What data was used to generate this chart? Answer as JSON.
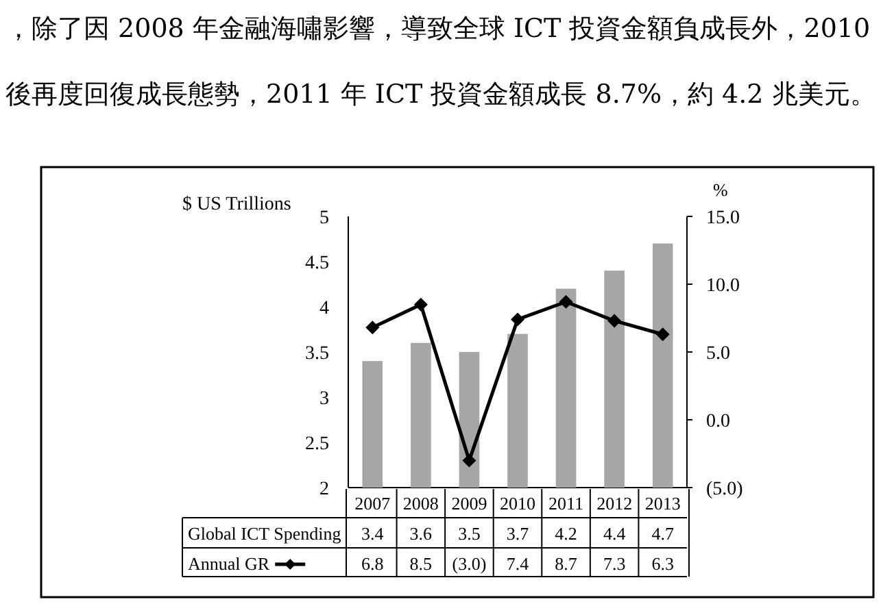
{
  "chart_data": {
    "type": "bar",
    "annotations": [
      "，除了因 2008 年金融海嘯影響，導致全球 ICT 投資金額負成長外，2010",
      "後再度回復成長態勢，2011 年 ICT 投資金額成長 8.7%，約 4.2 兆美元。"
    ],
    "ylabel": "$ US Trillions",
    "y2label": "%",
    "categories": [
      "2007",
      "2008",
      "2009",
      "2010",
      "2011",
      "2012",
      "2013"
    ],
    "series": [
      {
        "name": "Global ICT Spending",
        "type": "bar",
        "color": "#a6a6a6",
        "values": [
          3.4,
          3.6,
          3.5,
          3.7,
          4.2,
          4.4,
          4.7
        ],
        "value_labels": [
          "3.4",
          "3.6",
          "3.5",
          "3.7",
          "4.2",
          "4.4",
          "4.7"
        ]
      },
      {
        "name": "Annual GR",
        "type": "line",
        "axis": "y2",
        "color": "#000000",
        "marker": "diamond",
        "values": [
          6.8,
          8.5,
          -3.0,
          7.4,
          8.7,
          7.3,
          6.3
        ],
        "value_labels": [
          "6.8",
          "8.5",
          "(3.0)",
          "7.4",
          "8.7",
          "7.3",
          "6.3"
        ]
      }
    ],
    "ylim": [
      2,
      5
    ],
    "yticks": [
      2,
      2.5,
      3,
      3.5,
      4,
      4.5,
      5
    ],
    "y2lim": [
      -5,
      15
    ],
    "y2ticks": [
      {
        "value": -5,
        "label": "(5.0)"
      },
      {
        "value": 0,
        "label": "0.0"
      },
      {
        "value": 5,
        "label": "5.0"
      },
      {
        "value": 10,
        "label": "10.0"
      },
      {
        "value": 15,
        "label": "15.0"
      }
    ],
    "grid": false,
    "legend": "bottom left"
  }
}
